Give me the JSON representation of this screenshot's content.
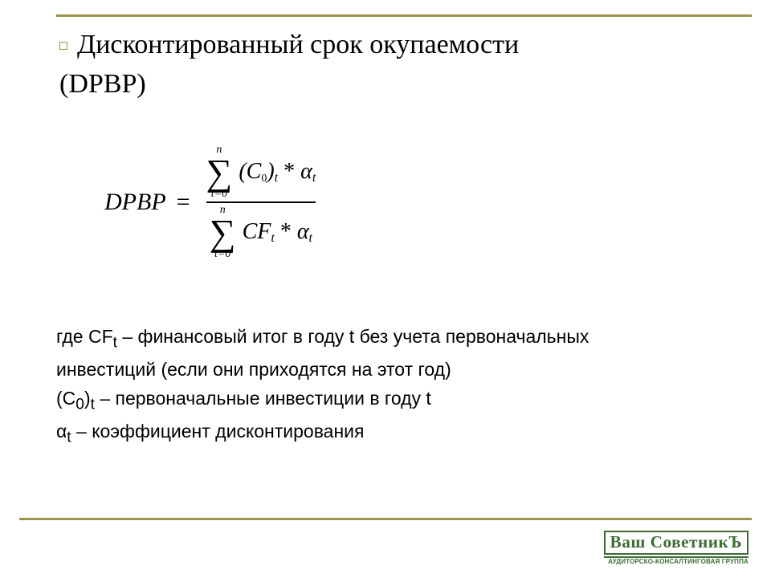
{
  "colors": {
    "rule": "#9e934c",
    "bullet_border": "#9e934c",
    "text": "#000000",
    "logo": "#3e6b34",
    "background": "#ffffff"
  },
  "title": {
    "line1": "Дисконтированный срок окупаемости",
    "line2": "(DPBP)",
    "fontsize_pt": 26,
    "font_family": "Garamond"
  },
  "formula": {
    "lhs": "DPBP",
    "equals": "=",
    "numerator": {
      "upper": "n",
      "lower": "t=0",
      "body_open": "(C",
      "body_sub0": "0",
      "body_close": ")",
      "body_subt": "t",
      "times": " * ",
      "alpha": "α",
      "alpha_sub": "t"
    },
    "denominator": {
      "upper": "n",
      "lower": "t=0",
      "body": "CF",
      "body_sub": "t",
      "times": " * ",
      "alpha": "α",
      "alpha_sub": "t"
    },
    "font_family": "Times New Roman",
    "font_style": "italic",
    "fontsize_pt": 22
  },
  "definitions": {
    "line1_prefix": "где  CF",
    "line1_sub": "t",
    "line1_rest": " – финансовый итог в году t без учета первоначальных",
    "line1_cont": "инвестиций (если они приходятся на этот год)",
    "line2_prefix": "(C",
    "line2_sub0": "0",
    "line2_mid": ")",
    "line2_subt": "t",
    "line2_rest": " – первоначальные инвестиции в году t",
    "line3_prefix": "α",
    "line3_sub": "t",
    "line3_rest": "  –  коэффициент дисконтирования",
    "fontsize_pt": 17,
    "font_family": "Arial"
  },
  "logo": {
    "main": "Ваш СоветникЪ",
    "sub": "АУДИТОРСКО-КОНСАЛТИНГОВАЯ ГРУППА",
    "color": "#3e6b34",
    "main_fontsize_pt": 16,
    "sub_fontsize_pt": 6
  }
}
